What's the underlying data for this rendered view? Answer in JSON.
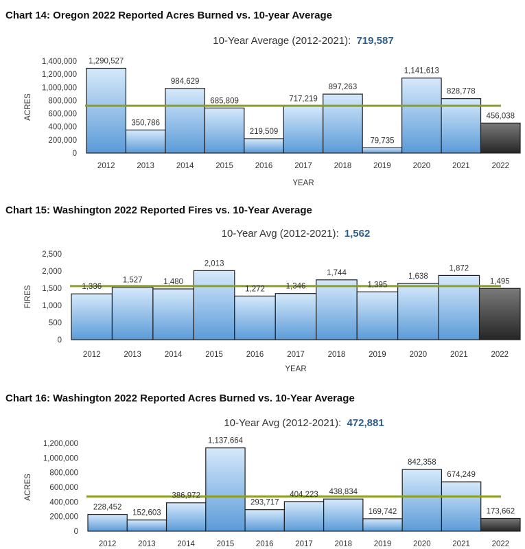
{
  "chart_data": [
    {
      "type": "bar",
      "title": "Chart 14: Oregon 2022 Reported Acres Burned vs. 10-year Average",
      "subtitle_prefix": "10-Year Average (2012-2021):",
      "average_label": "719,587",
      "average": 719587,
      "categories": [
        "2012",
        "2013",
        "2014",
        "2015",
        "2016",
        "2017",
        "2018",
        "2019",
        "2020",
        "2021",
        "2022"
      ],
      "values": [
        1290527,
        350786,
        984629,
        685809,
        219509,
        717219,
        897263,
        79735,
        1141613,
        828778,
        456038
      ],
      "value_labels": [
        "1,290,527",
        "350,786",
        "984,629",
        "685,809",
        "219,509",
        "717,219",
        "897,263",
        "79,735",
        "1,141,613",
        "828,778",
        "456,038"
      ],
      "yticks": [
        0,
        200000,
        400000,
        600000,
        800000,
        1000000,
        1200000,
        1400000
      ],
      "ytick_labels": [
        "0",
        "200,000",
        "400,000",
        "600,000",
        "800,000",
        "1,000,000",
        "1,200,000",
        "1,400,000"
      ],
      "ylim": [
        0,
        1400000
      ],
      "xlabel": "YEAR",
      "ylabel": "ACRES",
      "bar_color": "#a9cdf0",
      "highlight_color": "#3d3d3d",
      "average_line_color": "#8a9e2e"
    },
    {
      "type": "bar",
      "title": "Chart 15: Washington 2022 Reported Fires vs. 10-Year Average",
      "subtitle_prefix": "10-Year Avg (2012-2021):",
      "average_label": "1,562",
      "average": 1562,
      "categories": [
        "2012",
        "2013",
        "2014",
        "2015",
        "2016",
        "2017",
        "2018",
        "2019",
        "2020",
        "2021",
        "2022"
      ],
      "values": [
        1336,
        1527,
        1480,
        2013,
        1272,
        1346,
        1744,
        1395,
        1638,
        1872,
        1495
      ],
      "value_labels": [
        "1,336",
        "1,527",
        "1,480",
        "2,013",
        "1,272",
        "1,346",
        "1,744",
        "1,395",
        "1,638",
        "1,872",
        "1,495"
      ],
      "yticks": [
        0,
        500,
        1000,
        1500,
        2000,
        2500
      ],
      "ytick_labels": [
        "0",
        "500",
        "1,000",
        "1,500",
        "2,000",
        "2,500"
      ],
      "ylim": [
        0,
        2500
      ],
      "xlabel": "YEAR",
      "ylabel": "FIRES",
      "bar_color": "#a9cdf0",
      "highlight_color": "#3d3d3d",
      "average_line_color": "#8a9e2e"
    },
    {
      "type": "bar",
      "title": "Chart 16: Washington 2022 Reported Acres Burned vs. 10-Year Average",
      "subtitle_prefix": "10-Year Avg (2012-2021):",
      "average_label": "472,881",
      "average": 472881,
      "categories": [
        "2012",
        "2013",
        "2014",
        "2015",
        "2016",
        "2017",
        "2018",
        "2019",
        "2020",
        "2021",
        "2022"
      ],
      "values": [
        228452,
        152603,
        386972,
        1137664,
        293717,
        404223,
        438834,
        169742,
        842358,
        674249,
        173662
      ],
      "value_labels": [
        "228,452",
        "152,603",
        "386,972",
        "1,137,664",
        "293,717",
        "404,223",
        "438,834",
        "169,742",
        "842,358",
        "674,249",
        "173,662"
      ],
      "yticks": [
        0,
        200000,
        400000,
        600000,
        800000,
        1000000,
        1200000
      ],
      "ytick_labels": [
        "0",
        "200,000",
        "400,000",
        "600,000",
        "800,000",
        "1,000,000",
        "1,200,000"
      ],
      "ylim": [
        0,
        1200000
      ],
      "xlabel": "",
      "ylabel": "ACRES",
      "bar_color": "#a9cdf0",
      "highlight_color": "#3d3d3d",
      "average_line_color": "#8a9e2e"
    }
  ]
}
